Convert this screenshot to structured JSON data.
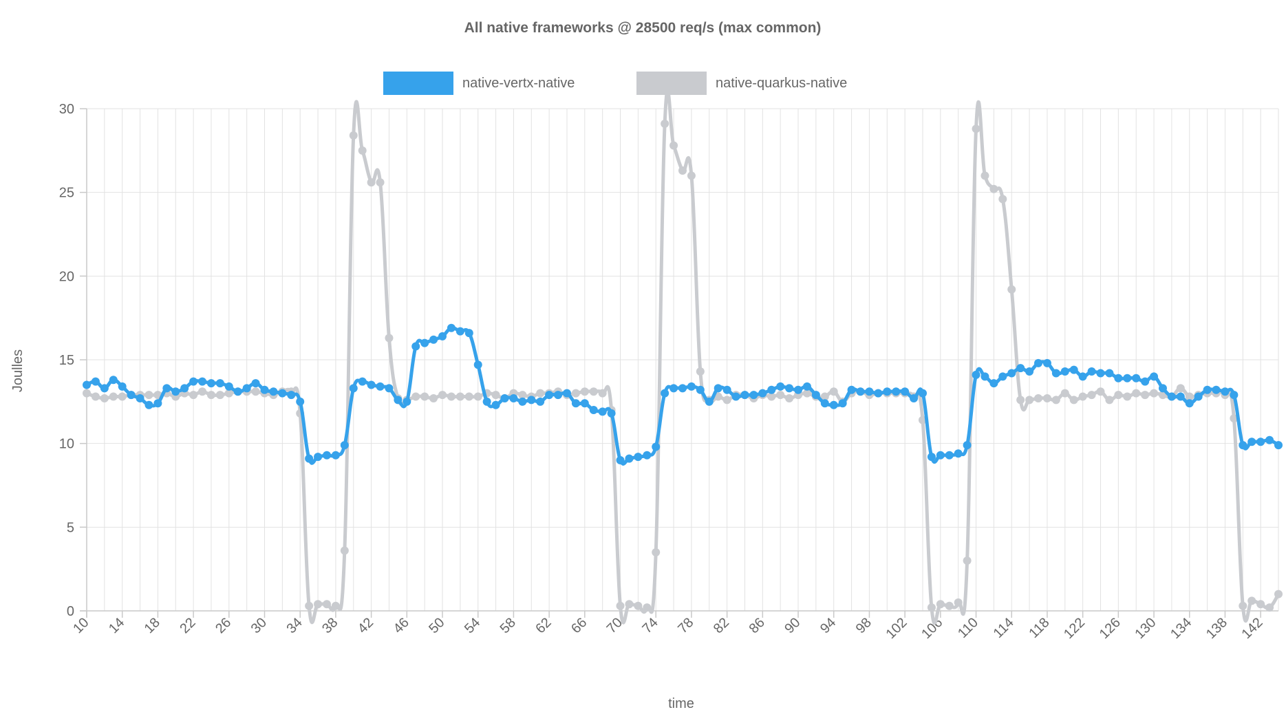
{
  "chart_data": {
    "type": "line",
    "title": "All native frameworks @ 28500 req/s (max common)",
    "xlabel": "time",
    "ylabel": "Joulles",
    "ylim": [
      0,
      30
    ],
    "yticks": [
      0,
      5,
      10,
      15,
      20,
      25,
      30
    ],
    "xlim": [
      10,
      144
    ],
    "xticks": [
      10,
      14,
      18,
      22,
      26,
      30,
      34,
      38,
      42,
      46,
      50,
      54,
      58,
      62,
      66,
      70,
      74,
      78,
      82,
      86,
      90,
      94,
      98,
      102,
      106,
      110,
      114,
      118,
      122,
      126,
      130,
      134,
      138,
      142
    ],
    "legend_position": "top-center",
    "grid": true,
    "x": [
      10,
      11,
      12,
      13,
      14,
      15,
      16,
      17,
      18,
      19,
      20,
      21,
      22,
      23,
      24,
      25,
      26,
      27,
      28,
      29,
      30,
      31,
      32,
      33,
      34,
      35,
      36,
      37,
      38,
      39,
      40,
      41,
      42,
      43,
      44,
      45,
      46,
      47,
      48,
      49,
      50,
      51,
      52,
      53,
      54,
      55,
      56,
      57,
      58,
      59,
      60,
      61,
      62,
      63,
      64,
      65,
      66,
      67,
      68,
      69,
      70,
      71,
      72,
      73,
      74,
      75,
      76,
      77,
      78,
      79,
      80,
      81,
      82,
      83,
      84,
      85,
      86,
      87,
      88,
      89,
      90,
      91,
      92,
      93,
      94,
      95,
      96,
      97,
      98,
      99,
      100,
      101,
      102,
      103,
      104,
      105,
      106,
      107,
      108,
      109,
      110,
      111,
      112,
      113,
      114,
      115,
      116,
      117,
      118,
      119,
      120,
      121,
      122,
      123,
      124,
      125,
      126,
      127,
      128,
      129,
      130,
      131,
      132,
      133,
      134,
      135,
      136,
      137,
      138,
      139,
      140,
      141,
      142,
      143,
      144
    ],
    "series": [
      {
        "name": "native-vertx-native",
        "color": "#36a2eb",
        "values": [
          13.5,
          13.7,
          13.3,
          13.8,
          13.4,
          12.9,
          12.7,
          12.3,
          12.4,
          13.3,
          13.1,
          13.3,
          13.7,
          13.7,
          13.6,
          13.6,
          13.4,
          13.1,
          13.3,
          13.6,
          13.2,
          13.1,
          13.0,
          12.9,
          12.5,
          9.1,
          9.2,
          9.3,
          9.3,
          9.9,
          13.3,
          13.7,
          13.5,
          13.4,
          13.3,
          12.6,
          12.5,
          15.8,
          16.0,
          16.2,
          16.4,
          16.9,
          16.7,
          16.6,
          14.7,
          12.5,
          12.3,
          12.7,
          12.7,
          12.5,
          12.6,
          12.5,
          12.9,
          12.9,
          13.0,
          12.4,
          12.4,
          12.0,
          11.9,
          11.8,
          9.0,
          9.1,
          9.2,
          9.3,
          9.8,
          13.0,
          13.3,
          13.3,
          13.4,
          13.2,
          12.5,
          13.3,
          13.2,
          12.8,
          12.9,
          12.9,
          13.0,
          13.2,
          13.4,
          13.3,
          13.2,
          13.4,
          12.9,
          12.4,
          12.3,
          12.4,
          13.2,
          13.1,
          13.1,
          13.0,
          13.1,
          13.1,
          13.1,
          12.7,
          13.0,
          9.2,
          9.3,
          9.3,
          9.4,
          9.9,
          14.1,
          14.0,
          13.6,
          14.0,
          14.2,
          14.5,
          14.3,
          14.8,
          14.8,
          14.2,
          14.3,
          14.4,
          14.0,
          14.3,
          14.2,
          14.2,
          13.9,
          13.9,
          13.9,
          13.7,
          14.0,
          13.3,
          12.8,
          12.8,
          12.4,
          12.8,
          13.2,
          13.2,
          13.1,
          12.9,
          9.9,
          10.1,
          10.1,
          10.2,
          9.9
        ]
      },
      {
        "name": "native-quarkus-native",
        "color": "#c9cbcf",
        "values": [
          13.0,
          12.8,
          12.7,
          12.8,
          12.8,
          12.9,
          12.9,
          12.9,
          12.9,
          13.0,
          12.8,
          13.0,
          12.9,
          13.1,
          12.9,
          12.9,
          13.0,
          13.1,
          13.1,
          13.1,
          13.0,
          12.9,
          13.1,
          13.1,
          11.8,
          0.3,
          0.4,
          0.4,
          0.3,
          3.6,
          28.4,
          27.5,
          25.6,
          25.6,
          16.3,
          12.7,
          12.6,
          12.8,
          12.8,
          12.7,
          12.9,
          12.8,
          12.8,
          12.8,
          12.8,
          13.0,
          12.9,
          12.7,
          13.0,
          12.9,
          12.8,
          13.0,
          13.0,
          13.1,
          12.9,
          13.0,
          13.1,
          13.1,
          13.0,
          12.0,
          0.3,
          0.4,
          0.3,
          0.2,
          3.5,
          29.1,
          27.8,
          26.3,
          26.0,
          14.3,
          12.6,
          12.8,
          12.6,
          12.9,
          12.9,
          12.7,
          12.9,
          12.8,
          12.9,
          12.7,
          12.9,
          13.0,
          12.8,
          12.8,
          13.1,
          12.5,
          13.0,
          13.1,
          12.9,
          13.0,
          13.0,
          13.0,
          13.0,
          12.8,
          11.4,
          0.2,
          0.4,
          0.3,
          0.5,
          3.0,
          28.8,
          26.0,
          25.2,
          24.6,
          19.2,
          12.6,
          12.6,
          12.7,
          12.7,
          12.6,
          13.0,
          12.6,
          12.8,
          12.9,
          13.1,
          12.6,
          12.9,
          12.8,
          13.0,
          12.9,
          13.0,
          12.9,
          12.8,
          13.3,
          12.8,
          12.9,
          13.0,
          13.0,
          12.9,
          11.5,
          0.3,
          0.6,
          0.4,
          0.2,
          1.0
        ]
      }
    ]
  }
}
